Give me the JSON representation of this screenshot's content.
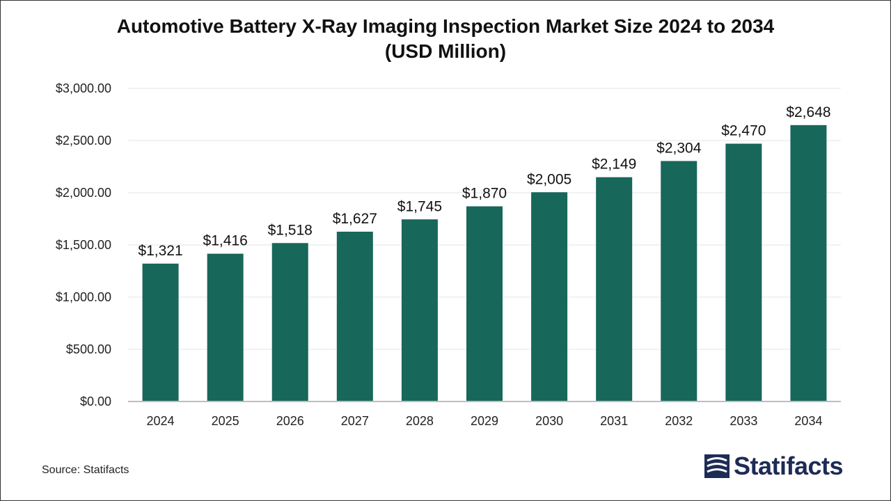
{
  "chart_data": {
    "type": "bar",
    "title_line1": "Automotive Battery X-Ray Imaging Inspection Market Size 2024 to 2034",
    "title_line2": "(USD Million)",
    "categories": [
      "2024",
      "2025",
      "2026",
      "2027",
      "2028",
      "2029",
      "2030",
      "2031",
      "2032",
      "2033",
      "2034"
    ],
    "values": [
      1321,
      1416,
      1518,
      1627,
      1745,
      1870,
      2005,
      2149,
      2304,
      2470,
      2648
    ],
    "value_labels": [
      "$1,321",
      "$1,416",
      "$1,518",
      "$1,627",
      "$1,745",
      "$1,870",
      "$2,005",
      "$2,149",
      "$2,304",
      "$2,470",
      "$2,648"
    ],
    "yticks": [
      0,
      500,
      1000,
      1500,
      2000,
      2500,
      3000
    ],
    "ytick_labels": [
      "$0.00",
      "$500.00",
      "$1,000.00",
      "$1,500.00",
      "$2,000.00",
      "$2,500.00",
      "$3,000.00"
    ],
    "ylim": [
      0,
      3000
    ],
    "grid": true,
    "bar_color": "#17675a"
  },
  "footer": {
    "source": "Source: Statifacts",
    "brand": "Statifacts",
    "brand_icon": "statifacts-logo-icon"
  }
}
